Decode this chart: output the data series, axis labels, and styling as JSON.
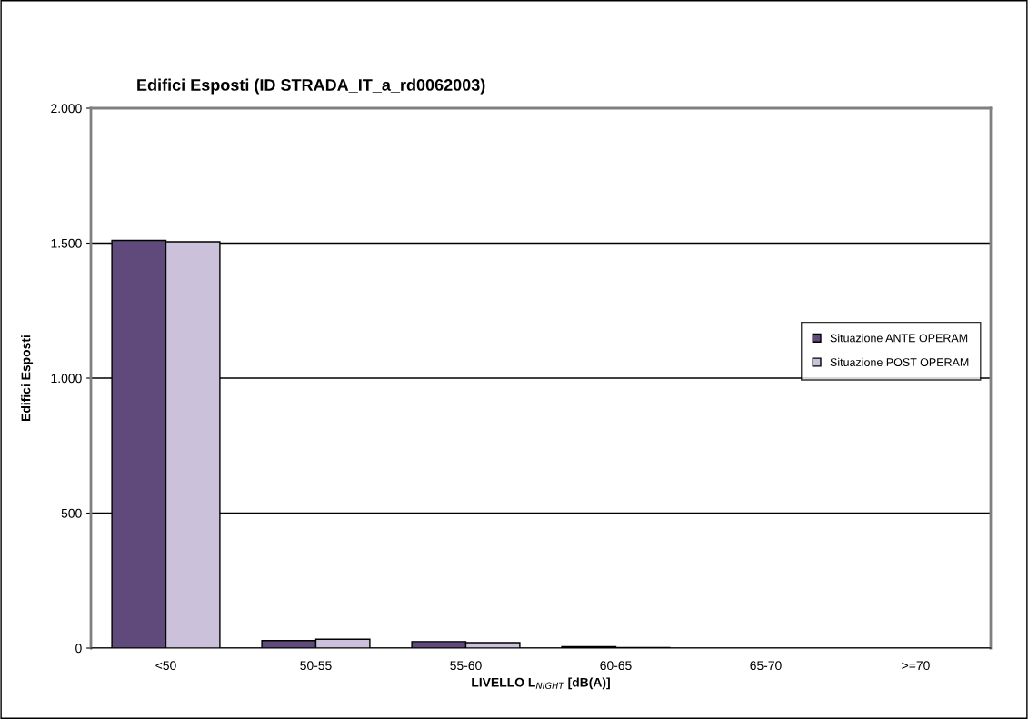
{
  "chart_data": {
    "type": "bar",
    "title": "Edifici Esposti (ID STRADA_IT_a_rd0062003)",
    "xlabel": "LIVELLO L$_{NIGHT}$ [dB(A)]",
    "ylabel": "Edifici Esposti",
    "categories": [
      "<50",
      "50-55",
      "55-60",
      "60-65",
      "65-70",
      ">=70"
    ],
    "series": [
      {
        "name": "Situazione ANTE OPERAM",
        "color": "#604a7b",
        "values": [
          1510,
          28,
          24,
          5,
          0,
          0
        ]
      },
      {
        "name": "Situazione POST OPERAM",
        "color": "#ccc1da",
        "values": [
          1505,
          33,
          20,
          2,
          0,
          0
        ]
      }
    ],
    "ylim": [
      0,
      2000
    ],
    "yticks": [
      {
        "value": 0,
        "label": "0"
      },
      {
        "value": 500,
        "label": "500"
      },
      {
        "value": 1000,
        "label": "1.000"
      },
      {
        "value": 1500,
        "label": "1.500"
      },
      {
        "value": 2000,
        "label": "2.000"
      }
    ],
    "grid": "y",
    "legend": "right"
  }
}
